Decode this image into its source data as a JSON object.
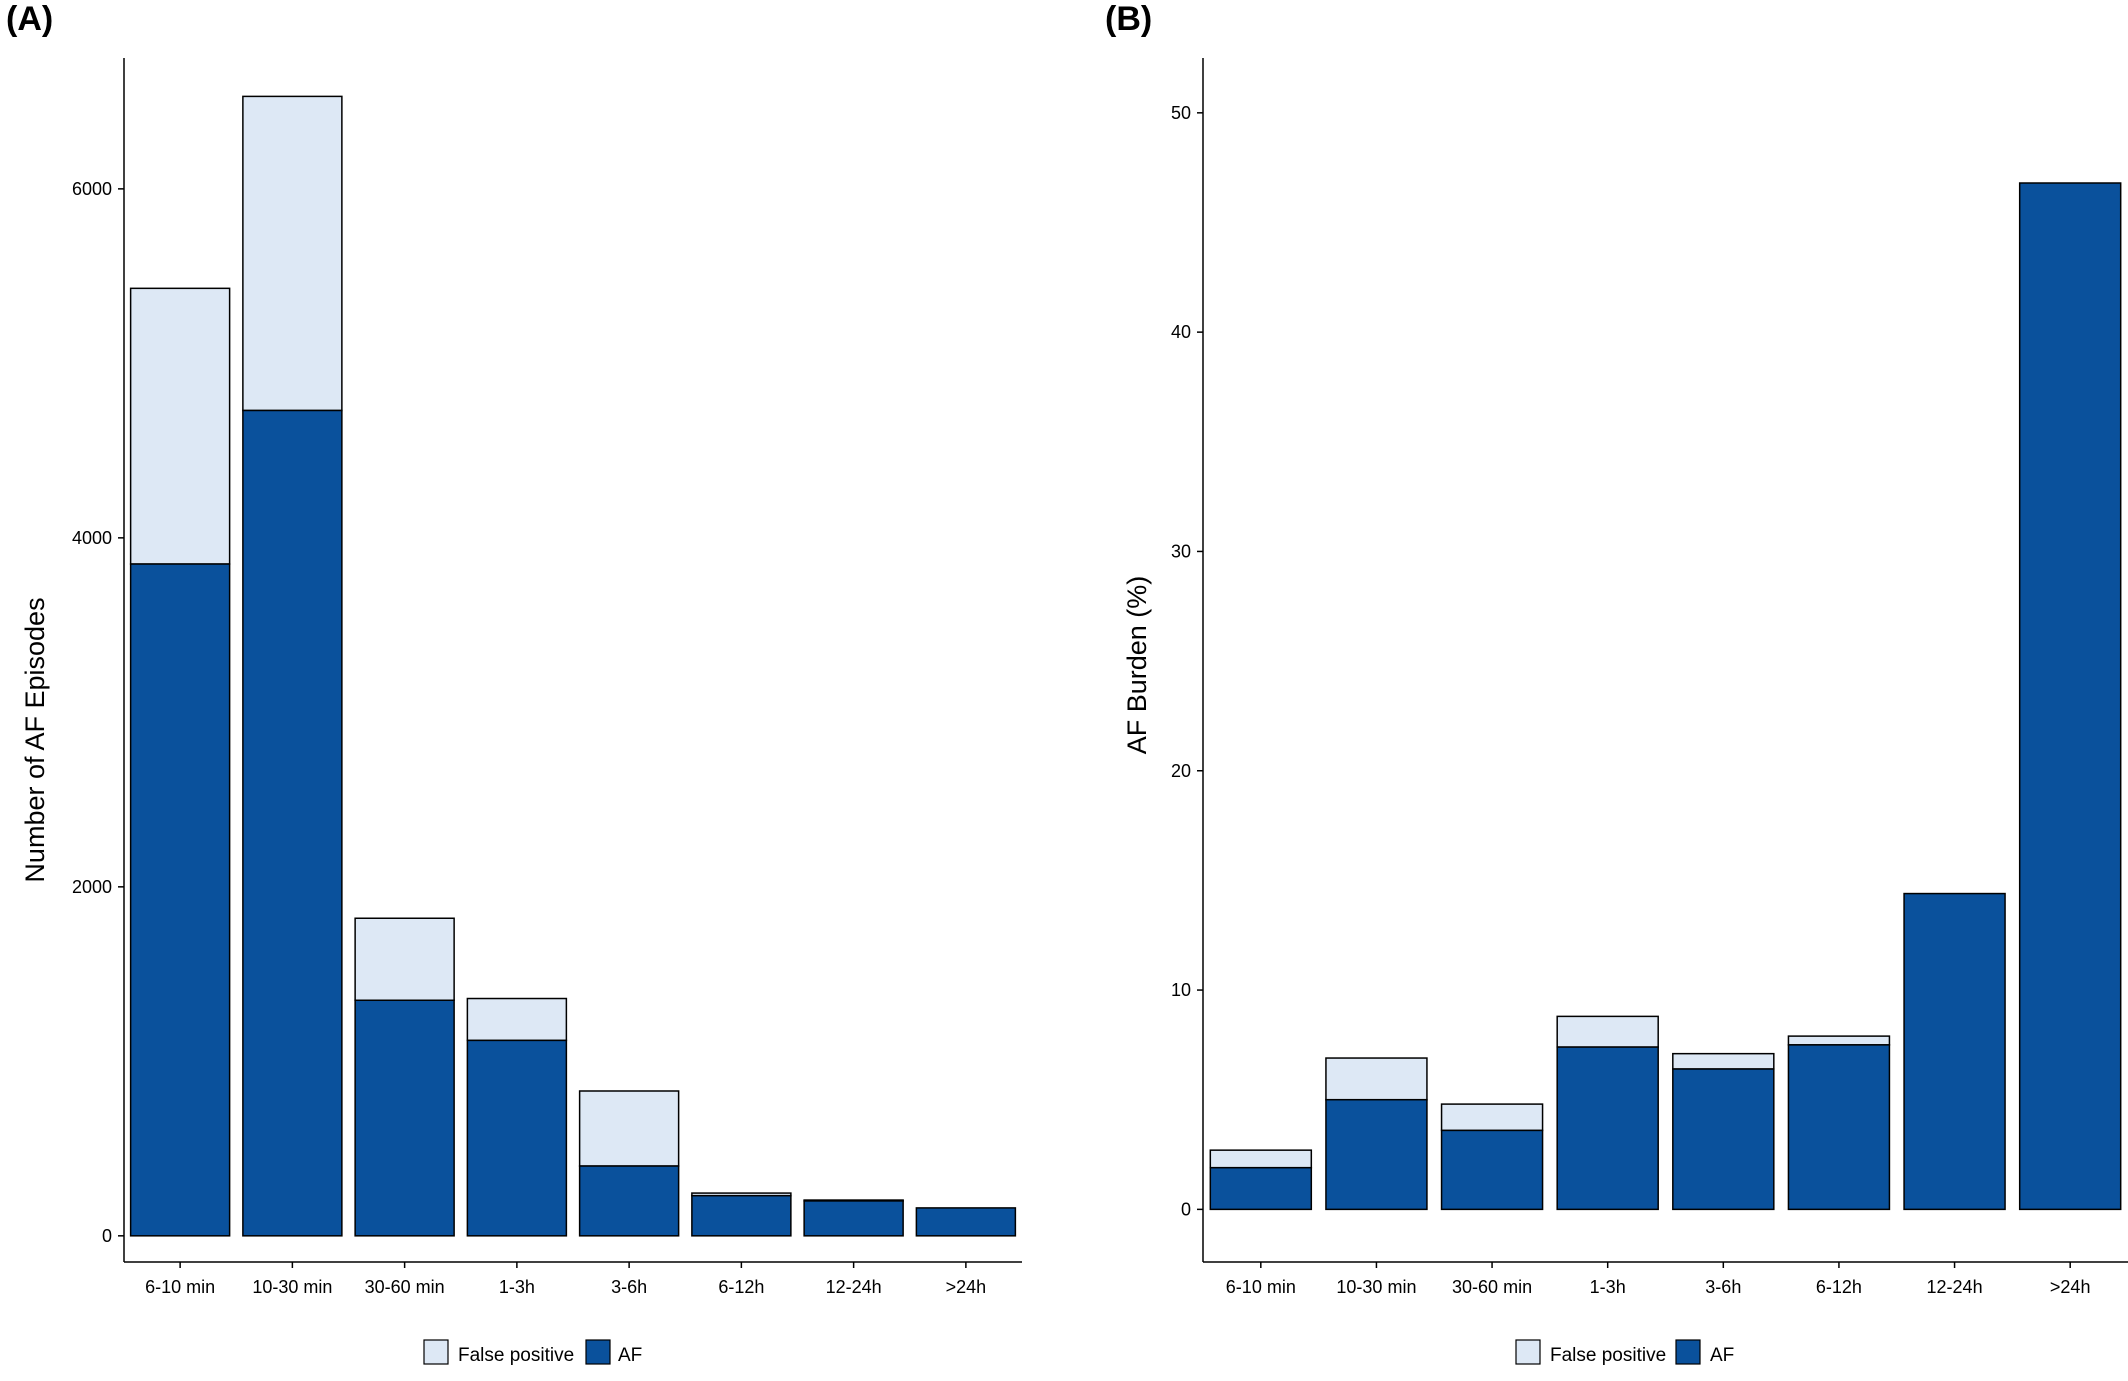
{
  "panels": {
    "a_label": "(A)",
    "b_label": "(B)"
  },
  "colors": {
    "false_positive": "#dde8f5",
    "af": "#0a519c",
    "bar_outline": "#000000"
  },
  "chart_data": [
    {
      "type": "bar",
      "stacked": true,
      "title": "",
      "xlabel": "",
      "ylabel": "Number of AF Episodes",
      "ylim": [
        -150,
        6750
      ],
      "yticks": [
        0,
        2000,
        4000,
        6000
      ],
      "categories": [
        "6-10 min",
        "10-30 min",
        "30-60 min",
        "1-3h",
        "3-6h",
        "6-12h",
        "12-24h",
        ">24h"
      ],
      "series": [
        {
          "name": "AF",
          "values": [
            3850,
            4730,
            1350,
            1120,
            400,
            230,
            200,
            160
          ]
        },
        {
          "name": "False positive",
          "values": [
            1580,
            1800,
            470,
            240,
            430,
            15,
            5,
            0
          ]
        }
      ],
      "legend": {
        "placement": "bottom",
        "entries": [
          "False positive",
          "AF"
        ]
      },
      "grid": false
    },
    {
      "type": "bar",
      "stacked": true,
      "title": "",
      "xlabel": "",
      "ylabel": "AF Burden (%)",
      "ylim": [
        -2.4,
        52.5
      ],
      "yticks": [
        0,
        10,
        20,
        30,
        40,
        50
      ],
      "categories": [
        "6-10 min",
        "10-30 min",
        "30-60 min",
        "1-3h",
        "3-6h",
        "6-12h",
        "12-24h",
        ">24h"
      ],
      "series": [
        {
          "name": "AF",
          "values": [
            1.9,
            5.0,
            3.6,
            7.4,
            6.4,
            7.5,
            14.4,
            46.8
          ]
        },
        {
          "name": "False positive",
          "values": [
            0.8,
            1.9,
            1.2,
            1.4,
            0.7,
            0.4,
            0.0,
            0.0
          ]
        }
      ],
      "legend": {
        "placement": "bottom",
        "entries": [
          "False positive",
          "AF"
        ]
      },
      "grid": false
    }
  ]
}
